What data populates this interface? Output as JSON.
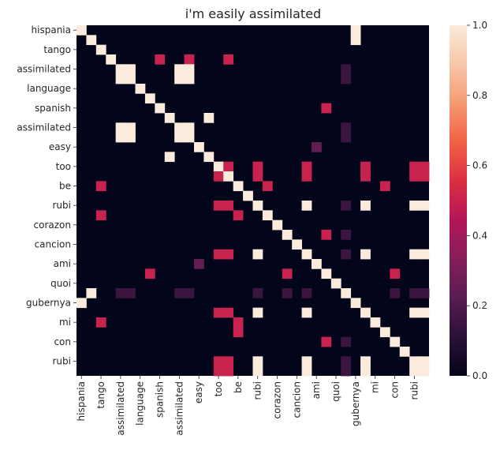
{
  "chart_data": {
    "type": "heatmap",
    "title": "i'm easily assimilated",
    "xlabel": "",
    "ylabel": "",
    "labels": [
      "hispania",
      "",
      "tango",
      "",
      "assimilated",
      "",
      "language",
      "",
      "spanish",
      "",
      "assimilated",
      "",
      "easy",
      "",
      "too",
      "",
      "be",
      "",
      "rubi",
      "",
      "corazon",
      "",
      "cancion",
      "",
      "ami",
      "",
      "quoi",
      "",
      "gubernya",
      "",
      "mi",
      "",
      "con",
      "",
      "rubi",
      ""
    ],
    "colorbar": {
      "min": 0.0,
      "max": 1.0,
      "ticks": [
        "0.0",
        "0.2",
        "0.4",
        "0.6",
        "0.8",
        "1.0"
      ]
    },
    "colormap": [
      "#03051a",
      "#2b1137",
      "#581d50",
      "#851e5a",
      "#b41658",
      "#dc2e43",
      "#f26146",
      "#f59a73",
      "#f6c7a9",
      "#faebdd"
    ],
    "cells": [
      [
        0,
        0,
        1.0
      ],
      [
        0,
        28,
        1.0
      ],
      [
        1,
        1,
        1.0
      ],
      [
        1,
        28,
        1.0
      ],
      [
        2,
        2,
        1.0
      ],
      [
        3,
        3,
        1.0
      ],
      [
        3,
        8,
        0.5
      ],
      [
        3,
        11,
        0.5
      ],
      [
        3,
        15,
        0.5
      ],
      [
        4,
        4,
        1.0
      ],
      [
        4,
        5,
        1.0
      ],
      [
        4,
        10,
        1.0
      ],
      [
        4,
        11,
        1.0
      ],
      [
        4,
        27,
        0.15
      ],
      [
        5,
        4,
        1.0
      ],
      [
        5,
        5,
        1.0
      ],
      [
        5,
        10,
        1.0
      ],
      [
        5,
        11,
        1.0
      ],
      [
        5,
        27,
        0.15
      ],
      [
        6,
        6,
        1.0
      ],
      [
        7,
        7,
        1.0
      ],
      [
        8,
        8,
        1.0
      ],
      [
        8,
        25,
        0.5
      ],
      [
        9,
        9,
        1.0
      ],
      [
        9,
        13,
        1.0
      ],
      [
        10,
        4,
        1.0
      ],
      [
        10,
        5,
        1.0
      ],
      [
        10,
        10,
        1.0
      ],
      [
        10,
        11,
        1.0
      ],
      [
        10,
        27,
        0.15
      ],
      [
        11,
        4,
        1.0
      ],
      [
        11,
        5,
        1.0
      ],
      [
        11,
        10,
        1.0
      ],
      [
        11,
        11,
        1.0
      ],
      [
        11,
        27,
        0.15
      ],
      [
        12,
        12,
        1.0
      ],
      [
        12,
        24,
        0.25
      ],
      [
        13,
        13,
        1.0
      ],
      [
        13,
        9,
        1.0
      ],
      [
        14,
        14,
        1.0
      ],
      [
        14,
        15,
        0.5
      ],
      [
        14,
        18,
        0.5
      ],
      [
        14,
        23,
        0.5
      ],
      [
        14,
        29,
        0.5
      ],
      [
        14,
        34,
        0.5
      ],
      [
        14,
        35,
        0.5
      ],
      [
        15,
        14,
        0.5
      ],
      [
        15,
        15,
        1.0
      ],
      [
        15,
        18,
        0.5
      ],
      [
        15,
        23,
        0.5
      ],
      [
        15,
        29,
        0.5
      ],
      [
        15,
        34,
        0.5
      ],
      [
        15,
        35,
        0.5
      ],
      [
        16,
        16,
        1.0
      ],
      [
        16,
        2,
        0.5
      ],
      [
        16,
        19,
        0.5
      ],
      [
        16,
        31,
        0.5
      ],
      [
        17,
        17,
        1.0
      ],
      [
        18,
        18,
        1.0
      ],
      [
        18,
        14,
        0.5
      ],
      [
        18,
        15,
        0.5
      ],
      [
        18,
        23,
        1.0
      ],
      [
        18,
        27,
        0.15
      ],
      [
        18,
        29,
        1.0
      ],
      [
        18,
        34,
        1.0
      ],
      [
        18,
        35,
        1.0
      ],
      [
        19,
        19,
        1.0
      ],
      [
        19,
        2,
        0.5
      ],
      [
        19,
        16,
        0.5
      ],
      [
        20,
        20,
        1.0
      ],
      [
        21,
        21,
        1.0
      ],
      [
        21,
        25,
        0.5
      ],
      [
        21,
        27,
        0.15
      ],
      [
        22,
        22,
        1.0
      ],
      [
        23,
        23,
        1.0
      ],
      [
        23,
        14,
        0.5
      ],
      [
        23,
        15,
        0.5
      ],
      [
        23,
        18,
        1.0
      ],
      [
        23,
        27,
        0.15
      ],
      [
        23,
        29,
        1.0
      ],
      [
        23,
        34,
        1.0
      ],
      [
        23,
        35,
        1.0
      ],
      [
        24,
        24,
        1.0
      ],
      [
        24,
        12,
        0.25
      ],
      [
        25,
        25,
        1.0
      ],
      [
        25,
        7,
        0.5
      ],
      [
        25,
        21,
        0.5
      ],
      [
        25,
        32,
        0.5
      ],
      [
        26,
        26,
        1.0
      ],
      [
        27,
        27,
        1.0
      ],
      [
        27,
        1,
        1.0
      ],
      [
        27,
        4,
        0.15
      ],
      [
        27,
        5,
        0.15
      ],
      [
        27,
        10,
        0.15
      ],
      [
        27,
        11,
        0.15
      ],
      [
        27,
        18,
        0.15
      ],
      [
        27,
        21,
        0.15
      ],
      [
        27,
        23,
        0.15
      ],
      [
        27,
        32,
        0.15
      ],
      [
        27,
        34,
        0.15
      ],
      [
        27,
        35,
        0.15
      ],
      [
        28,
        28,
        1.0
      ],
      [
        28,
        0,
        1.0
      ],
      [
        29,
        29,
        1.0
      ],
      [
        29,
        14,
        0.5
      ],
      [
        29,
        15,
        0.5
      ],
      [
        29,
        18,
        1.0
      ],
      [
        29,
        23,
        1.0
      ],
      [
        29,
        34,
        1.0
      ],
      [
        29,
        35,
        1.0
      ],
      [
        30,
        30,
        1.0
      ],
      [
        30,
        2,
        0.5
      ],
      [
        30,
        16,
        0.5
      ],
      [
        31,
        31,
        1.0
      ],
      [
        31,
        16,
        0.5
      ],
      [
        32,
        32,
        1.0
      ],
      [
        32,
        25,
        0.5
      ],
      [
        32,
        27,
        0.15
      ],
      [
        33,
        33,
        1.0
      ],
      [
        34,
        34,
        1.0
      ],
      [
        34,
        14,
        0.5
      ],
      [
        34,
        15,
        0.5
      ],
      [
        34,
        18,
        1.0
      ],
      [
        34,
        23,
        1.0
      ],
      [
        34,
        27,
        0.15
      ],
      [
        34,
        29,
        1.0
      ],
      [
        34,
        35,
        1.0
      ],
      [
        35,
        35,
        1.0
      ],
      [
        35,
        14,
        0.5
      ],
      [
        35,
        15,
        0.5
      ],
      [
        35,
        18,
        1.0
      ],
      [
        35,
        23,
        1.0
      ],
      [
        35,
        27,
        0.15
      ],
      [
        35,
        29,
        1.0
      ],
      [
        35,
        34,
        1.0
      ]
    ]
  }
}
